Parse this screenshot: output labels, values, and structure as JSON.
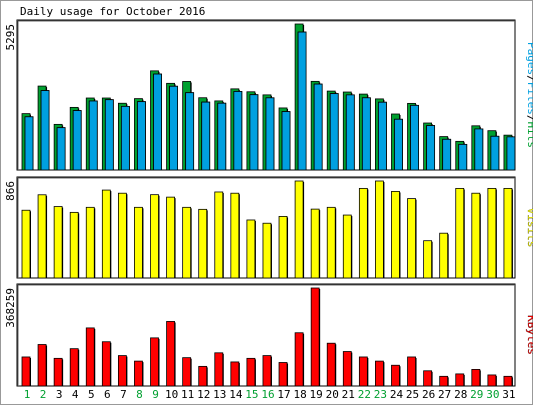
{
  "chart_data": [
    {
      "type": "bar",
      "title": "Daily usage for October 2016",
      "ylabel": "Pages/Files/Hits",
      "ymax_label": "5295",
      "ylim": [
        0,
        5295
      ],
      "categories": [
        "1",
        "2",
        "3",
        "4",
        "5",
        "6",
        "7",
        "8",
        "9",
        "10",
        "11",
        "12",
        "13",
        "14",
        "15",
        "16",
        "17",
        "18",
        "19",
        "20",
        "21",
        "22",
        "23",
        "24",
        "25",
        "26",
        "27",
        "28",
        "29",
        "30",
        "31"
      ],
      "weekend_days": [
        "1",
        "2",
        "8",
        "9",
        "15",
        "16",
        "22",
        "23",
        "29",
        "30"
      ],
      "series": [
        {
          "name": "Hits",
          "color": "#00a030",
          "values": [
            2045,
            3044,
            1655,
            2271,
            2611,
            2611,
            2421,
            2589,
            3596,
            3143,
            3211,
            2621,
            2506,
            2943,
            2837,
            2725,
            2251,
            5295,
            3215,
            2862,
            2828,
            2753,
            2579,
            2031,
            2416,
            1704,
            1212,
            1039,
            1603,
            1426,
            1264
          ]
        },
        {
          "name": "Files",
          "color": "#00a0e0",
          "values": [
            1930,
            2880,
            1535,
            2155,
            2503,
            2550,
            2307,
            2479,
            3480,
            3037,
            2804,
            2462,
            2422,
            2848,
            2731,
            2618,
            2117,
            5003,
            3116,
            2770,
            2725,
            2619,
            2458,
            1840,
            2344,
            1612,
            1113,
            929,
            1490,
            1223,
            1202
          ]
        },
        {
          "name": "Pages",
          "color": "#00a0e0",
          "values": [
            1930,
            2880,
            1535,
            2155,
            2503,
            2550,
            2307,
            2479,
            3480,
            3037,
            2804,
            2462,
            2422,
            2848,
            2731,
            2618,
            2117,
            5003,
            3116,
            2770,
            2725,
            2619,
            2458,
            1840,
            2344,
            1612,
            1113,
            929,
            1490,
            1223,
            1202
          ]
        }
      ]
    },
    {
      "type": "bar",
      "ylabel": "Visits",
      "ymax_label": "866",
      "ylim": [
        0,
        866
      ],
      "categories": [
        "1",
        "2",
        "3",
        "4",
        "5",
        "6",
        "7",
        "8",
        "9",
        "10",
        "11",
        "12",
        "13",
        "14",
        "15",
        "16",
        "17",
        "18",
        "19",
        "20",
        "21",
        "22",
        "23",
        "24",
        "25",
        "26",
        "27",
        "28",
        "29",
        "30",
        "31"
      ],
      "series": [
        {
          "name": "Visits",
          "color": "#ffff00",
          "values": [
            605,
            743,
            638,
            586,
            631,
            785,
            757,
            631,
            744,
            722,
            631,
            613,
            768,
            757,
            518,
            489,
            550,
            866,
            615,
            631,
            562,
            800,
            866,
            773,
            709,
            333,
            400,
            800,
            757,
            800,
            800
          ]
        }
      ]
    },
    {
      "type": "bar",
      "ylabel": "KBytes",
      "ymax_label": "368259",
      "ylim": [
        0,
        368259
      ],
      "categories": [
        "1",
        "2",
        "3",
        "4",
        "5",
        "6",
        "7",
        "8",
        "9",
        "10",
        "11",
        "12",
        "13",
        "14",
        "15",
        "16",
        "17",
        "18",
        "19",
        "20",
        "21",
        "22",
        "23",
        "24",
        "25",
        "26",
        "27",
        "28",
        "29",
        "30",
        "31"
      ],
      "series": [
        {
          "name": "KBytes",
          "color": "#ff0000",
          "values": [
            109127,
            155956,
            103930,
            140315,
            218321,
            166350,
            114325,
            93535,
            180899,
            242576,
            106529,
            73763,
            124727,
            90416,
            103930,
            114325,
            88338,
            200122,
            368259,
            160756,
            129564,
            109127,
            93535,
            77960,
            109127,
            57168,
            36378,
            45475,
            62365,
            41576,
            36378
          ]
        }
      ]
    }
  ]
}
